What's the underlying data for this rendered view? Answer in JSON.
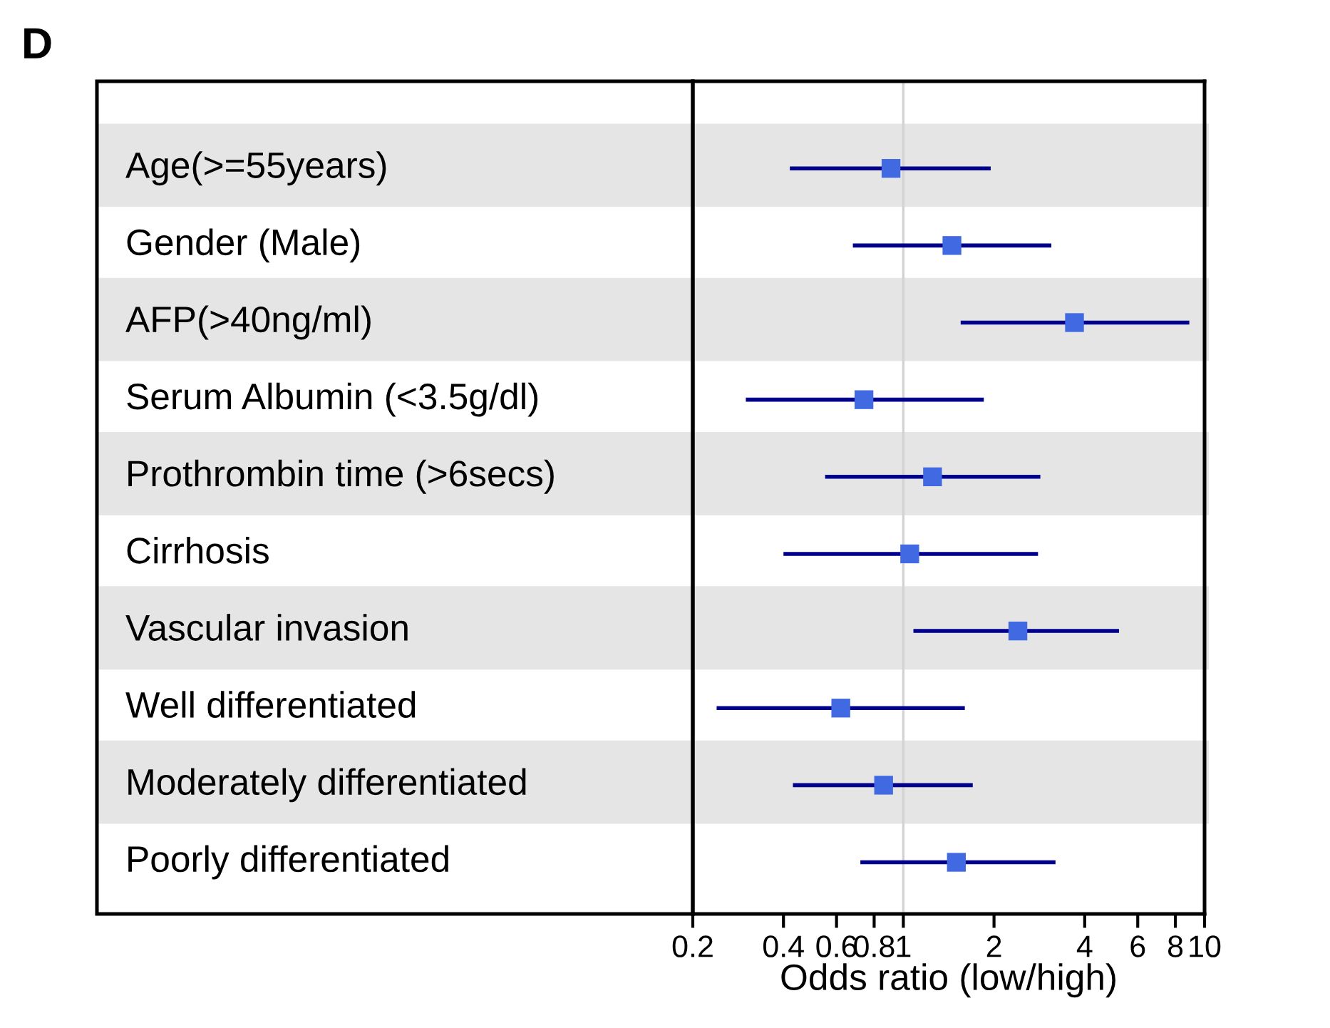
{
  "chart_data": {
    "type": "scatter",
    "title": "D",
    "xlabel": "Odds ratio (low/high)",
    "orientation": "horizontal",
    "log": "x",
    "marker": "square",
    "grid": false,
    "categories": [
      "Age(>=55years)",
      "Gender (Male)",
      "AFP(>40ng/ml)",
      "Serum Albumin (<3.5g/dl)",
      "Prothrombin time (>6secs)",
      "Cirrhosis",
      "Vascular invasion",
      "Well differentiated",
      "Moderately differentiated",
      "Poorly differentiated"
    ],
    "series": [
      {
        "color": "#4169e1",
        "values": [
          0.91,
          1.45,
          3.7,
          0.74,
          1.25,
          1.05,
          2.4,
          0.62,
          0.86,
          1.5
        ],
        "errors": [
          [
            0.42,
            1.95
          ],
          [
            0.68,
            3.1
          ],
          [
            1.55,
            8.9
          ],
          [
            0.3,
            1.85
          ],
          [
            0.55,
            2.85
          ],
          [
            0.4,
            2.8
          ],
          [
            1.08,
            5.2
          ],
          [
            0.24,
            1.6
          ],
          [
            0.43,
            1.7
          ],
          [
            0.72,
            3.2
          ]
        ]
      }
    ],
    "xlim": [
      0.2,
      10
    ],
    "xticks": [
      0.2,
      0.4,
      0.6,
      0.8,
      1,
      2,
      4,
      6,
      8,
      10
    ],
    "ref_lines": [
      {
        "axis": "x",
        "value": 1,
        "color": "#d3d3d3"
      }
    ],
    "bands": [
      {
        "axis": "y",
        "from": "Age(>=55years)",
        "to": "Age(>=55years)",
        "color": "#e5e5e5"
      },
      {
        "axis": "y",
        "from": "AFP(>40ng/ml)",
        "to": "AFP(>40ng/ml)",
        "color": "#e5e5e5"
      },
      {
        "axis": "y",
        "from": "Prothrombin time (>6secs)",
        "to": "Prothrombin time (>6secs)",
        "color": "#e5e5e5"
      },
      {
        "axis": "y",
        "from": "Vascular invasion",
        "to": "Vascular invasion",
        "color": "#e5e5e5"
      },
      {
        "axis": "y",
        "from": "Moderately differentiated",
        "to": "Moderately differentiated",
        "color": "#e5e5e5"
      }
    ]
  }
}
